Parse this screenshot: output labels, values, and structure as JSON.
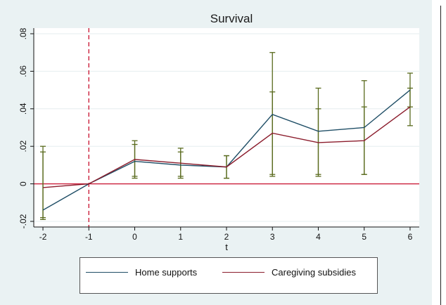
{
  "chart_data": {
    "type": "line",
    "title": "Survival",
    "xlabel": "t",
    "ylabel": "",
    "x": [
      -2,
      -1,
      0,
      1,
      2,
      3,
      4,
      5,
      6
    ],
    "x_ticks": [
      "-2",
      "-1",
      "0",
      "1",
      "2",
      "3",
      "4",
      "5",
      "6"
    ],
    "y_ticks": [
      "-.02",
      "0",
      ".02",
      ".04",
      ".06",
      ".08"
    ],
    "y_tick_values": [
      -0.02,
      0,
      0.02,
      0.04,
      0.06,
      0.08
    ],
    "xlim": [
      -2.2,
      6.2
    ],
    "ylim": [
      -0.023,
      0.083
    ],
    "grid": true,
    "legend_position": "bottom",
    "reference_lines": {
      "vertical_x": -1,
      "horizontal_y": 0
    },
    "series": [
      {
        "name": "Home supports",
        "color": "#1f4e66",
        "values": [
          -0.014,
          0,
          0.012,
          0.01,
          0.009,
          0.037,
          0.028,
          0.03,
          0.05
        ],
        "ci_low": [
          -0.019,
          0,
          0.003,
          0.003,
          0.003,
          0.005,
          0.005,
          0.005,
          0.041
        ],
        "ci_high": [
          0.017,
          0,
          0.021,
          0.017,
          0.015,
          0.07,
          0.051,
          0.055,
          0.059
        ]
      },
      {
        "name": "Caregiving subsidies",
        "color": "#8b1c2c",
        "values": [
          -0.002,
          0,
          0.013,
          0.011,
          0.009,
          0.027,
          0.022,
          0.023,
          0.041
        ],
        "ci_low": [
          -0.018,
          0,
          0.004,
          0.004,
          0.003,
          0.004,
          0.004,
          0.005,
          0.031
        ],
        "ci_high": [
          0.02,
          0,
          0.023,
          0.019,
          0.015,
          0.049,
          0.04,
          0.041,
          0.051
        ]
      }
    ],
    "ci_color": "#5a6b1e",
    "ref_line_color": "#c8102e"
  }
}
